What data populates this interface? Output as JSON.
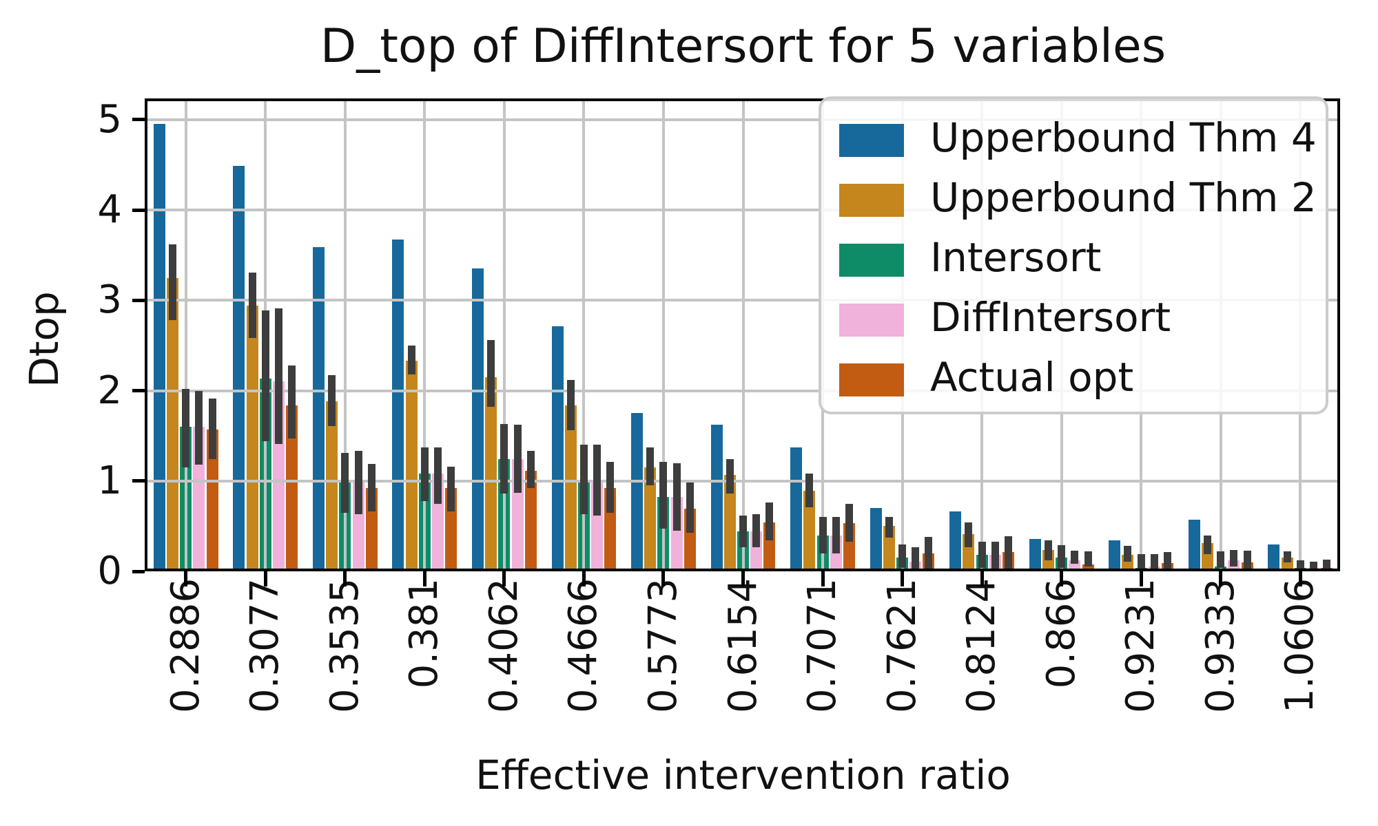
{
  "figure": {
    "title": "D_top of DiffIntersort for 5 variables"
  },
  "chart_data": {
    "type": "bar",
    "title": "D_top of DiffIntersort for 5 variables",
    "xlabel": "Effective intervention ratio",
    "ylabel": "Dtop",
    "ylim": [
      0,
      5.22
    ],
    "yticks": [
      0,
      1,
      2,
      3,
      4,
      5
    ],
    "grid": true,
    "legend_position": "upper right",
    "error_bar_color": "#3d3d3d",
    "categories": [
      "0.2886",
      "0.3077",
      "0.3535",
      "0.381",
      "0.4062",
      "0.4666",
      "0.5773",
      "0.6154",
      "0.7071",
      "0.7621",
      "0.8124",
      "0.866",
      "0.9231",
      "0.9333",
      "1.0606"
    ],
    "series": [
      {
        "name": "Upperbound Thm 4",
        "color": "#17699C",
        "values": [
          4.95,
          4.49,
          3.59,
          3.67,
          3.35,
          2.71,
          1.75,
          1.62,
          1.37,
          0.7,
          0.66,
          0.36,
          0.34,
          0.57,
          0.3
        ]
      },
      {
        "name": "Upperbound Thm 2",
        "color": "#C4861D",
        "values": [
          3.25,
          2.94,
          1.88,
          2.33,
          2.15,
          1.84,
          1.15,
          1.07,
          0.89,
          0.5,
          0.41,
          0.24,
          0.18,
          0.31,
          0.15
        ],
        "err_low": [
          2.78,
          2.58,
          1.61,
          2.18,
          1.82,
          1.56,
          0.95,
          0.86,
          0.71,
          0.37,
          0.27,
          0.12,
          0.11,
          0.19,
          0.1
        ],
        "err_high": [
          3.62,
          3.31,
          2.17,
          2.5,
          2.56,
          2.12,
          1.37,
          1.24,
          1.08,
          0.6,
          0.54,
          0.34,
          0.28,
          0.4,
          0.22
        ]
      },
      {
        "name": "Intersort",
        "color": "#0E8C68",
        "values": [
          1.6,
          2.13,
          0.98,
          1.08,
          1.24,
          0.99,
          0.82,
          0.44,
          0.4,
          0.15,
          0.18,
          0.15,
          0.04,
          0.05,
          0.04
        ],
        "err_low": [
          1.15,
          1.44,
          0.65,
          0.78,
          0.86,
          0.63,
          0.47,
          0.27,
          0.2,
          0.04,
          0.04,
          0.04,
          0.03,
          0.04,
          0.02
        ],
        "err_high": [
          2.02,
          2.89,
          1.31,
          1.37,
          1.63,
          1.4,
          1.21,
          0.62,
          0.6,
          0.3,
          0.33,
          0.29,
          0.19,
          0.22,
          0.12
        ]
      },
      {
        "name": "DiffIntersort",
        "color": "#F0B1DA",
        "values": [
          1.6,
          2.1,
          0.98,
          1.08,
          1.24,
          0.99,
          0.82,
          0.44,
          0.4,
          0.11,
          0.18,
          0.12,
          0.05,
          0.12,
          0.04
        ],
        "err_low": [
          1.18,
          1.41,
          0.63,
          0.75,
          0.87,
          0.62,
          0.45,
          0.27,
          0.2,
          0.03,
          0.03,
          0.08,
          0.02,
          0.05,
          0.01
        ],
        "err_high": [
          2.0,
          2.91,
          1.33,
          1.37,
          1.62,
          1.4,
          1.2,
          0.63,
          0.6,
          0.27,
          0.33,
          0.23,
          0.19,
          0.24,
          0.11
        ]
      },
      {
        "name": "Actual opt",
        "color": "#C25C12",
        "values": [
          1.57,
          1.84,
          0.92,
          0.92,
          1.11,
          0.92,
          0.69,
          0.54,
          0.53,
          0.2,
          0.21,
          0.08,
          0.09,
          0.1,
          0.04
        ],
        "err_low": [
          1.24,
          1.47,
          0.66,
          0.66,
          0.92,
          0.65,
          0.43,
          0.34,
          0.33,
          0.02,
          0.03,
          0.05,
          0.02,
          0.03,
          0.02
        ],
        "err_high": [
          1.91,
          2.28,
          1.19,
          1.16,
          1.33,
          1.21,
          0.98,
          0.76,
          0.75,
          0.38,
          0.39,
          0.22,
          0.21,
          0.23,
          0.13
        ]
      }
    ]
  }
}
